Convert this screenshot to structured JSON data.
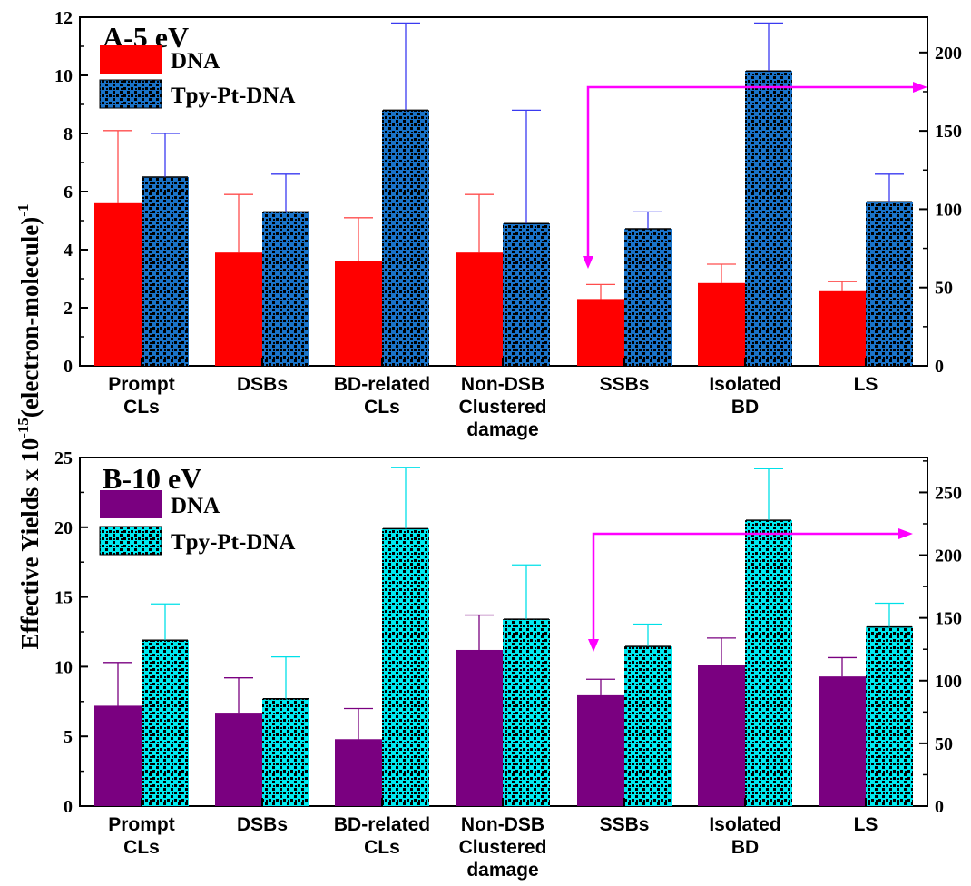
{
  "figure": {
    "ylabel_main": "Effective Yields x 10",
    "ylabel_exp": "-15",
    "ylabel_tail": "(electron-molecule)",
    "ylabel_exp2": "-1"
  },
  "chart_data": [
    {
      "type": "bar",
      "title": "A-5 eV",
      "categories": [
        [
          "Prompt",
          "CLs"
        ],
        [
          "DSBs"
        ],
        [
          "BD-related",
          "CLs"
        ],
        [
          "Non-DSB",
          "Clustered",
          "damage"
        ],
        [
          "SSBs"
        ],
        [
          "Isolated",
          "BD"
        ],
        [
          "LS"
        ]
      ],
      "left_axis": {
        "range": [
          0,
          12
        ],
        "ticks": [
          "0",
          "2",
          "4",
          "6",
          "8",
          "10",
          "12"
        ]
      },
      "right_axis": {
        "range": [
          0,
          222.5
        ],
        "ticks": [
          "0",
          "50",
          "100",
          "150",
          "200"
        ]
      },
      "series": [
        {
          "name": "DNA",
          "color": "#ff0000",
          "error_color": "#ff4d4d",
          "values": [
            5.6,
            3.9,
            3.6,
            3.9,
            2.3,
            2.85,
            2.57
          ],
          "errors": [
            2.5,
            2.0,
            1.5,
            2.0,
            0.5,
            0.65,
            0.33
          ]
        },
        {
          "name": "Tpy-Pt-DNA",
          "color": "#1a73c8",
          "error_color": "#3a3af0",
          "values": [
            6.5,
            5.3,
            8.8,
            4.9,
            4.72,
            10.15,
            5.65
          ],
          "errors": [
            1.5,
            1.3,
            3.0,
            3.9,
            0.58,
            1.65,
            0.95
          ]
        }
      ],
      "secondary_axis_categories": [
        "SSBs",
        "Isolated BD",
        "LS"
      ],
      "grid": false,
      "legend": "top-left"
    },
    {
      "type": "bar",
      "title": "B-10 eV",
      "categories": [
        [
          "Prompt",
          "CLs"
        ],
        [
          "DSBs"
        ],
        [
          "BD-related",
          "CLs"
        ],
        [
          "Non-DSB",
          "Clustered",
          "damage"
        ],
        [
          "SSBs"
        ],
        [
          "Isolated",
          "BD"
        ],
        [
          "LS"
        ]
      ],
      "left_axis": {
        "range": [
          0,
          25
        ],
        "ticks": [
          "0",
          "5",
          "10",
          "15",
          "20",
          "25"
        ]
      },
      "right_axis": {
        "range": [
          0,
          277.8
        ],
        "ticks": [
          "0",
          "50",
          "100",
          "150",
          "200",
          "250"
        ]
      },
      "series": [
        {
          "name": "DNA",
          "color": "#7a0080",
          "error_color": "#7a0080",
          "values": [
            7.2,
            6.7,
            4.8,
            11.2,
            7.95,
            10.1,
            9.3
          ],
          "errors": [
            3.1,
            2.5,
            2.2,
            2.5,
            1.15,
            1.95,
            1.35
          ]
        },
        {
          "name": "Tpy-Pt-DNA",
          "color": "#00e0e8",
          "error_color": "#00e0e8",
          "values": [
            11.9,
            7.7,
            19.9,
            13.4,
            11.45,
            20.5,
            12.85
          ],
          "errors": [
            2.6,
            3.0,
            4.4,
            3.9,
            1.6,
            3.7,
            1.7
          ]
        }
      ],
      "secondary_axis_categories": [
        "SSBs",
        "Isolated BD",
        "LS"
      ],
      "grid": false,
      "legend": "top-left"
    }
  ]
}
